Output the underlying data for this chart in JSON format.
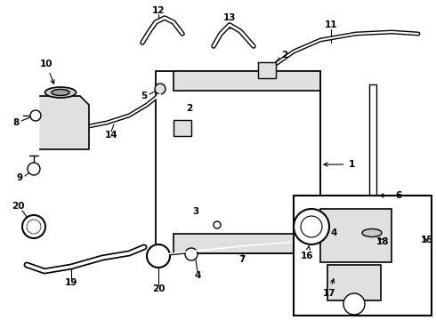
{
  "bg_color": "#ffffff",
  "line_color": "#000000",
  "gray1": "#c8c8c8",
  "gray2": "#e0e0e0",
  "gray3": "#a0a0a0"
}
